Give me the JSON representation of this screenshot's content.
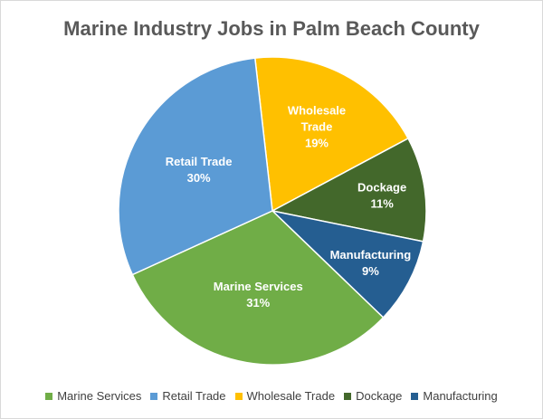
{
  "chart_data": {
    "type": "pie",
    "title": "Marine Industry Jobs in Palm Beach County",
    "legend_position": "bottom",
    "slices": [
      {
        "name": "Marine Services",
        "value": 31,
        "label": "31%",
        "color": "#70ad47"
      },
      {
        "name": "Retail Trade",
        "value": 30,
        "label": "30%",
        "color": "#5b9bd5"
      },
      {
        "name": "Wholesale Trade",
        "value": 19,
        "label": "19%",
        "color": "#ffc000"
      },
      {
        "name": "Dockage",
        "value": 11,
        "label": "11%",
        "color": "#43682b"
      },
      {
        "name": "Manufacturing",
        "value": 9,
        "label": "9%",
        "color": "#255e91"
      }
    ]
  }
}
